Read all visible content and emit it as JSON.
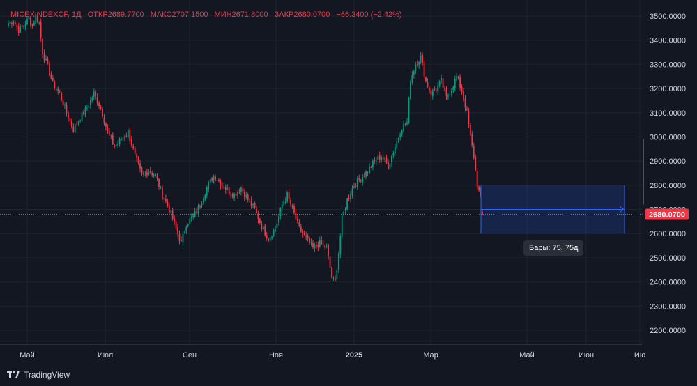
{
  "legend": {
    "symbol": "MICEXINDEXCF, 1Д",
    "open_label": "ОТКР",
    "open": "2689.7700",
    "high_label": "МАКС",
    "high": "2707.1500",
    "low_label": "МИН",
    "low": "2671.8000",
    "close_label": "ЗАКР",
    "close": "2680.0700",
    "change": "−66.3400 (−2.42%)"
  },
  "colors": {
    "background": "#131722",
    "up": "#089981",
    "down": "#f23645",
    "grid": "#1f232e",
    "axis_text": "#d1d4dc",
    "range_fill": "#2962ff",
    "price_label_bg": "#f23645"
  },
  "tooltip": {
    "text": "Бары: 75, 75д"
  },
  "branding": {
    "name": "TradingView",
    "icon": "tradingview-logo-icon"
  },
  "chart_data": {
    "type": "candlestick",
    "y_axis": {
      "ticks": [
        "3500.0000",
        "3400.0000",
        "3300.0000",
        "3200.0000",
        "3100.0000",
        "3000.0000",
        "2900.0000",
        "2800.0000",
        "2700.0000",
        "2600.0000",
        "2500.0000",
        "2400.0000",
        "2300.0000",
        "2200.0000"
      ],
      "range": [
        2140,
        3540
      ]
    },
    "x_axis": {
      "ticks": [
        "Май",
        "Июл",
        "Сен",
        "Ноя",
        "2025",
        "Мар",
        "Май",
        "Июн",
        "Ию"
      ]
    },
    "last_price": {
      "value": 2680.07,
      "label": "2680.0700"
    },
    "close_path": [
      [
        0,
        3470
      ],
      [
        3,
        3480
      ],
      [
        6,
        3440
      ],
      [
        9,
        3460
      ],
      [
        12,
        3490
      ],
      [
        14,
        3460
      ],
      [
        16,
        3500
      ],
      [
        18,
        3470
      ],
      [
        20,
        3350
      ],
      [
        23,
        3290
      ],
      [
        26,
        3220
      ],
      [
        30,
        3180
      ],
      [
        34,
        3100
      ],
      [
        38,
        3030
      ],
      [
        42,
        3080
      ],
      [
        46,
        3120
      ],
      [
        50,
        3180
      ],
      [
        54,
        3120
      ],
      [
        58,
        3020
      ],
      [
        62,
        2960
      ],
      [
        66,
        2990
      ],
      [
        70,
        3020
      ],
      [
        74,
        2920
      ],
      [
        78,
        2840
      ],
      [
        82,
        2860
      ],
      [
        86,
        2840
      ],
      [
        90,
        2760
      ],
      [
        94,
        2700
      ],
      [
        98,
        2620
      ],
      [
        101,
        2560
      ],
      [
        104,
        2640
      ],
      [
        108,
        2670
      ],
      [
        112,
        2720
      ],
      [
        116,
        2790
      ],
      [
        120,
        2840
      ],
      [
        124,
        2810
      ],
      [
        128,
        2780
      ],
      [
        132,
        2760
      ],
      [
        136,
        2790
      ],
      [
        140,
        2740
      ],
      [
        144,
        2700
      ],
      [
        148,
        2630
      ],
      [
        152,
        2580
      ],
      [
        156,
        2620
      ],
      [
        160,
        2720
      ],
      [
        163,
        2760
      ],
      [
        166,
        2700
      ],
      [
        170,
        2620
      ],
      [
        174,
        2580
      ],
      [
        178,
        2540
      ],
      [
        182,
        2560
      ],
      [
        186,
        2540
      ],
      [
        189,
        2420
      ],
      [
        191,
        2400
      ],
      [
        193,
        2520
      ],
      [
        195,
        2660
      ],
      [
        198,
        2740
      ],
      [
        202,
        2800
      ],
      [
        206,
        2830
      ],
      [
        210,
        2860
      ],
      [
        214,
        2900
      ],
      [
        218,
        2920
      ],
      [
        222,
        2880
      ],
      [
        226,
        2960
      ],
      [
        230,
        3040
      ],
      [
        233,
        3060
      ],
      [
        235,
        3240
      ],
      [
        238,
        3300
      ],
      [
        241,
        3330
      ],
      [
        244,
        3230
      ],
      [
        247,
        3180
      ],
      [
        250,
        3200
      ],
      [
        253,
        3230
      ],
      [
        256,
        3160
      ],
      [
        259,
        3200
      ],
      [
        262,
        3250
      ],
      [
        265,
        3190
      ],
      [
        268,
        3100
      ],
      [
        270,
        3000
      ],
      [
        272,
        2920
      ],
      [
        274,
        2800
      ],
      [
        276,
        2746
      ],
      [
        277,
        2680
      ]
    ],
    "bars_total": 278,
    "measure_range": {
      "start_bar": 277,
      "end_bar": 352,
      "top": 2800,
      "bottom": 2600,
      "label": "Бары: 75, 75д"
    }
  }
}
